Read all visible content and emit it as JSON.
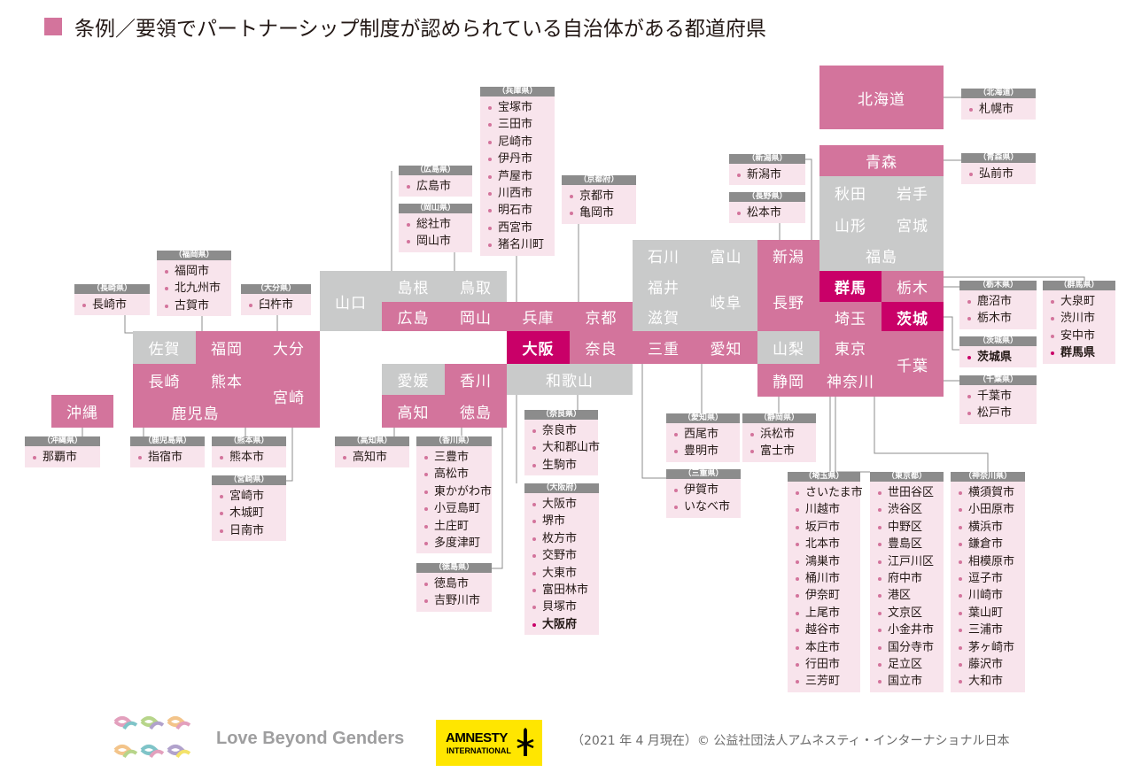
{
  "title": "条例／要領でパートナーシップ制度が認められている自治体がある都道府県",
  "colors": {
    "has_system": "#d3749c",
    "no_system": "#c9caca",
    "prefecture_wide": "#c90068",
    "list_bg": "#f8e4ec",
    "list_header": "#8c8c8c"
  },
  "prefectures": [
    {
      "name": "北海道",
      "status": "yes"
    },
    {
      "name": "青森",
      "status": "yes"
    },
    {
      "name": "秋田",
      "status": "no"
    },
    {
      "name": "岩手",
      "status": "no"
    },
    {
      "name": "山形",
      "status": "no"
    },
    {
      "name": "宮城",
      "status": "no"
    },
    {
      "name": "福島",
      "status": "no"
    },
    {
      "name": "石川",
      "status": "no"
    },
    {
      "name": "富山",
      "status": "no"
    },
    {
      "name": "新潟",
      "status": "yes"
    },
    {
      "name": "群馬",
      "status": "wide"
    },
    {
      "name": "栃木",
      "status": "yes"
    },
    {
      "name": "福井",
      "status": "no"
    },
    {
      "name": "岐阜",
      "status": "no"
    },
    {
      "name": "長野",
      "status": "yes"
    },
    {
      "name": "埼玉",
      "status": "yes"
    },
    {
      "name": "茨城",
      "status": "wide"
    },
    {
      "name": "滋賀",
      "status": "no"
    },
    {
      "name": "山口",
      "status": "no"
    },
    {
      "name": "島根",
      "status": "no"
    },
    {
      "name": "鳥取",
      "status": "no"
    },
    {
      "name": "広島",
      "status": "yes"
    },
    {
      "name": "岡山",
      "status": "yes"
    },
    {
      "name": "兵庫",
      "status": "yes"
    },
    {
      "name": "京都",
      "status": "yes"
    },
    {
      "name": "大阪",
      "status": "wide"
    },
    {
      "name": "奈良",
      "status": "yes"
    },
    {
      "name": "三重",
      "status": "yes"
    },
    {
      "name": "愛知",
      "status": "yes"
    },
    {
      "name": "山梨",
      "status": "no"
    },
    {
      "name": "東京",
      "status": "yes"
    },
    {
      "name": "千葉",
      "status": "yes"
    },
    {
      "name": "和歌山",
      "status": "no"
    },
    {
      "name": "静岡",
      "status": "yes"
    },
    {
      "name": "神奈川",
      "status": "yes"
    },
    {
      "name": "愛媛",
      "status": "no"
    },
    {
      "name": "香川",
      "status": "yes"
    },
    {
      "name": "高知",
      "status": "yes"
    },
    {
      "name": "徳島",
      "status": "yes"
    },
    {
      "name": "佐賀",
      "status": "no"
    },
    {
      "name": "福岡",
      "status": "yes"
    },
    {
      "name": "大分",
      "status": "yes"
    },
    {
      "name": "長崎",
      "status": "yes"
    },
    {
      "name": "熊本",
      "status": "yes"
    },
    {
      "name": "宮崎",
      "status": "yes"
    },
    {
      "name": "鹿児島",
      "status": "yes"
    },
    {
      "name": "沖縄",
      "status": "yes"
    }
  ],
  "lists": [
    {
      "header": "（北海道）",
      "items": [
        "札幌市"
      ]
    },
    {
      "header": "（青森県）",
      "items": [
        "弘前市"
      ]
    },
    {
      "header": "（新潟県）",
      "items": [
        "新潟市"
      ]
    },
    {
      "header": "（長野県）",
      "items": [
        "松本市"
      ]
    },
    {
      "header": "（栃木県）",
      "items": [
        "鹿沼市",
        "栃木市"
      ]
    },
    {
      "header": "（群馬県）",
      "items": [
        "大泉町",
        "渋川市",
        "安中市",
        "群馬県"
      ],
      "wide_index": 3
    },
    {
      "header": "（茨城県）",
      "items": [
        "茨城県"
      ],
      "wide_index": 0
    },
    {
      "header": "（千葉県）",
      "items": [
        "千葉市",
        "松戸市"
      ]
    },
    {
      "header": "（兵庫県）",
      "items": [
        "宝塚市",
        "三田市",
        "尼崎市",
        "伊丹市",
        "芦屋市",
        "川西市",
        "明石市",
        "西宮市",
        "猪名川町"
      ]
    },
    {
      "header": "（京都府）",
      "items": [
        "京都市",
        "亀岡市"
      ]
    },
    {
      "header": "（広島県）",
      "items": [
        "広島市"
      ]
    },
    {
      "header": "（岡山県）",
      "items": [
        "総社市",
        "岡山市"
      ]
    },
    {
      "header": "（福岡県）",
      "items": [
        "福岡市",
        "北九州市",
        "古賀市"
      ]
    },
    {
      "header": "（長崎県）",
      "items": [
        "長崎市"
      ]
    },
    {
      "header": "（大分県）",
      "items": [
        "臼杵市"
      ]
    },
    {
      "header": "（沖縄県）",
      "items": [
        "那覇市"
      ]
    },
    {
      "header": "（鹿児島県）",
      "items": [
        "指宿市"
      ]
    },
    {
      "header": "（熊本県）",
      "items": [
        "熊本市"
      ]
    },
    {
      "header": "（宮崎県）",
      "items": [
        "宮崎市",
        "木城町",
        "日南市"
      ]
    },
    {
      "header": "（高知県）",
      "items": [
        "高知市"
      ]
    },
    {
      "header": "（香川県）",
      "items": [
        "三豊市",
        "高松市",
        "東かがわ市",
        "小豆島町",
        "土庄町",
        "多度津町"
      ]
    },
    {
      "header": "（徳島県）",
      "items": [
        "徳島市",
        "吉野川市"
      ]
    },
    {
      "header": "（奈良県）",
      "items": [
        "奈良市",
        "大和郡山市",
        "生駒市"
      ]
    },
    {
      "header": "（大阪府）",
      "items": [
        "大阪市",
        "堺市",
        "枚方市",
        "交野市",
        "大東市",
        "富田林市",
        "貝塚市",
        "大阪府"
      ],
      "wide_index": 7
    },
    {
      "header": "（愛知県）",
      "items": [
        "西尾市",
        "豊明市"
      ]
    },
    {
      "header": "（静岡県）",
      "items": [
        "浜松市",
        "富士市"
      ]
    },
    {
      "header": "（三重県）",
      "items": [
        "伊賀市",
        "いなべ市"
      ]
    },
    {
      "header": "（埼玉県）",
      "items": [
        "さいたま市",
        "川越市",
        "坂戸市",
        "北本市",
        "鴻巣市",
        "桶川市",
        "伊奈町",
        "上尾市",
        "越谷市",
        "本庄市",
        "行田市",
        "三芳町"
      ]
    },
    {
      "header": "（東京都）",
      "items": [
        "世田谷区",
        "渋谷区",
        "中野区",
        "豊島区",
        "江戸川区",
        "府中市",
        "港区",
        "文京区",
        "小金井市",
        "国分寺市",
        "足立区",
        "国立市"
      ]
    },
    {
      "header": "（神奈川県）",
      "items": [
        "横須賀市",
        "小田原市",
        "横浜市",
        "鎌倉市",
        "相模原市",
        "逗子市",
        "川崎市",
        "葉山町",
        "三浦市",
        "茅ヶ崎市",
        "藤沢市",
        "大和市"
      ]
    }
  ],
  "footer": {
    "brand": "Love Beyond Genders",
    "amnesty_line1": "AMNESTY",
    "amnesty_line2": "INTERNATIONAL",
    "credit": "（2021 年 4 月現在）© 公益社団法人アムネスティ・インターナショナル日本"
  }
}
